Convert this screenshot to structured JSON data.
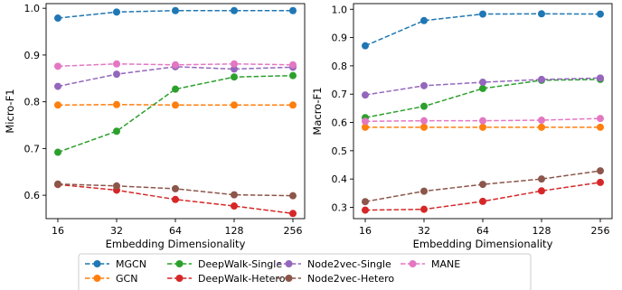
{
  "chart_data": [
    {
      "type": "line",
      "x": [
        16,
        32,
        64,
        128,
        256
      ],
      "xscale": "log2",
      "xlabel": "Embedding Dimensionality",
      "ylabel": "Micro-F1",
      "ylim": [
        0.55,
        1.01
      ],
      "yticks": [
        0.6,
        0.7,
        0.8,
        0.9,
        1.0
      ],
      "ytick_labels": [
        "0.6",
        "0.7",
        "0.8",
        "0.9",
        "1.0"
      ],
      "series": [
        {
          "name": "MGCN",
          "color": "#1f77b4",
          "values": [
            0.979,
            0.992,
            0.995,
            0.995,
            0.995
          ]
        },
        {
          "name": "GCN",
          "color": "#ff7f0e",
          "values": [
            0.793,
            0.794,
            0.793,
            0.793,
            0.793
          ]
        },
        {
          "name": "DeepWalk-Single",
          "color": "#2ca02c",
          "values": [
            0.692,
            0.737,
            0.827,
            0.853,
            0.856
          ]
        },
        {
          "name": "DeepWalk-Hetero",
          "color": "#d62728",
          "values": [
            0.623,
            0.611,
            0.591,
            0.577,
            0.561
          ]
        },
        {
          "name": "Node2vec-Single",
          "color": "#9467bd",
          "values": [
            0.833,
            0.859,
            0.875,
            0.87,
            0.874
          ]
        },
        {
          "name": "Node2vec-Hetero",
          "color": "#8c564b",
          "values": [
            0.624,
            0.62,
            0.614,
            0.601,
            0.599
          ]
        },
        {
          "name": "MANE",
          "color": "#e377c2",
          "values": [
            0.876,
            0.881,
            0.879,
            0.881,
            0.879
          ]
        }
      ]
    },
    {
      "type": "line",
      "x": [
        16,
        32,
        64,
        128,
        256
      ],
      "xscale": "log2",
      "xlabel": "Embedding Dimensionality",
      "ylabel": "Macro-F1",
      "ylim": [
        0.26,
        1.02
      ],
      "yticks": [
        0.3,
        0.4,
        0.5,
        0.6,
        0.7,
        0.8,
        0.9,
        1.0
      ],
      "ytick_labels": [
        "0.3",
        "0.4",
        "0.5",
        "0.6",
        "0.7",
        "0.8",
        "0.9",
        "1.0"
      ],
      "series": [
        {
          "name": "MGCN",
          "color": "#1f77b4",
          "values": [
            0.871,
            0.96,
            0.983,
            0.984,
            0.983
          ]
        },
        {
          "name": "GCN",
          "color": "#ff7f0e",
          "values": [
            0.583,
            0.583,
            0.583,
            0.583,
            0.583
          ]
        },
        {
          "name": "DeepWalk-Single",
          "color": "#2ca02c",
          "values": [
            0.617,
            0.657,
            0.72,
            0.749,
            0.752
          ]
        },
        {
          "name": "DeepWalk-Hetero",
          "color": "#d62728",
          "values": [
            0.29,
            0.293,
            0.321,
            0.358,
            0.388
          ]
        },
        {
          "name": "Node2vec-Single",
          "color": "#9467bd",
          "values": [
            0.697,
            0.73,
            0.742,
            0.752,
            0.757
          ]
        },
        {
          "name": "Node2vec-Hetero",
          "color": "#8c564b",
          "values": [
            0.32,
            0.357,
            0.381,
            0.4,
            0.429
          ]
        },
        {
          "name": "MANE",
          "color": "#e377c2",
          "values": [
            0.604,
            0.606,
            0.606,
            0.608,
            0.614
          ]
        }
      ]
    }
  ],
  "legend": {
    "placement": "bottom-center",
    "columns": 4,
    "items": [
      "MGCN",
      "GCN",
      "DeepWalk-Single",
      "DeepWalk-Hetero",
      "Node2vec-Single",
      "Node2vec-Hetero",
      "MANE"
    ]
  }
}
